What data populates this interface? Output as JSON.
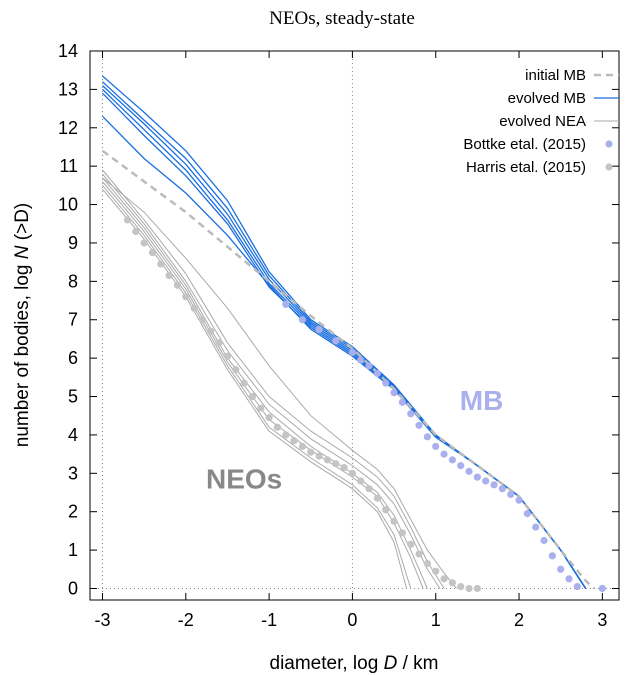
{
  "chart_data": {
    "type": "line",
    "title": "NEOs, steady-state",
    "xlabel_prefix": "diameter, log ",
    "xlabel_var": "D",
    "xlabel_suffix": " / km",
    "ylabel_prefix": "number of bodies, log ",
    "ylabel_var": "N",
    "ylabel_suffix": " (>D)",
    "xlim": [
      -3.15,
      3.2
    ],
    "ylim": [
      -0.3,
      14
    ],
    "xticks": [
      -3,
      -2,
      -1,
      0,
      1,
      2,
      3
    ],
    "yticks": [
      0,
      1,
      2,
      3,
      4,
      5,
      6,
      7,
      8,
      9,
      10,
      11,
      12,
      13,
      14
    ],
    "grid": false,
    "legend_position": "top-right",
    "annotations": [
      {
        "text": "MB",
        "x": 1.55,
        "y": 4.65,
        "color": "#aab0ee"
      },
      {
        "text": "NEOs",
        "x": -1.3,
        "y": 2.6,
        "color": "#888888"
      }
    ],
    "colors": {
      "initial_mb": "#bbbbbb",
      "evolved_mb": "#1a6fe0",
      "evolved_nea": "#aaaaaa",
      "bottke": "#aab0ee",
      "harris": "#c4c4c4"
    },
    "series": [
      {
        "name": "initial MB",
        "style": "dashed",
        "color": "#bbbbbb",
        "x": [
          -3,
          -2.5,
          -2,
          -1.5,
          -1,
          -0.5,
          0,
          0.5,
          1,
          1.5,
          2,
          2.5,
          2.8,
          2.9
        ],
        "y": [
          11.4,
          10.6,
          9.8,
          8.9,
          8.0,
          7.1,
          6.25,
          5.2,
          4.0,
          3.2,
          2.4,
          1.0,
          0.2,
          0.0
        ]
      },
      {
        "name": "evolved MB",
        "style": "solid",
        "color": "#1a6fe0",
        "lines": [
          {
            "x": [
              -3,
              -2.5,
              -2,
              -1.5,
              -1,
              -0.5,
              0,
              0.5,
              1,
              1.5,
              2,
              2.5,
              2.8
            ],
            "y": [
              13.35,
              12.4,
              11.4,
              10.1,
              8.25,
              7.0,
              6.3,
              5.3,
              4.0,
              3.2,
              2.4,
              1.0,
              0.0
            ]
          },
          {
            "x": [
              -3,
              -2.5,
              -2,
              -1.5,
              -1,
              -0.5,
              0,
              0.5,
              1,
              1.5,
              2,
              2.5,
              2.8
            ],
            "y": [
              13.2,
              12.2,
              11.2,
              9.9,
              8.15,
              6.95,
              6.25,
              5.28,
              3.98,
              3.2,
              2.4,
              1.0,
              0.0
            ]
          },
          {
            "x": [
              -3,
              -2.5,
              -2,
              -1.5,
              -1,
              -0.5,
              0,
              0.5,
              1,
              1.5,
              2,
              2.5,
              2.8
            ],
            "y": [
              13.1,
              12.1,
              11.05,
              9.75,
              8.05,
              6.9,
              6.2,
              5.25,
              3.97,
              3.2,
              2.4,
              1.0,
              0.0
            ]
          },
          {
            "x": [
              -3,
              -2.5,
              -2,
              -1.5,
              -1,
              -0.5,
              0,
              0.5,
              1,
              1.5,
              2,
              2.5,
              2.8
            ],
            "y": [
              13.0,
              11.95,
              10.9,
              9.6,
              7.95,
              6.85,
              6.15,
              5.22,
              3.96,
              3.2,
              2.4,
              1.0,
              0.0
            ]
          },
          {
            "x": [
              -3,
              -2.5,
              -2,
              -1.5,
              -1,
              -0.5,
              0,
              0.5,
              1,
              1.5,
              2,
              2.5,
              2.8
            ],
            "y": [
              12.9,
              11.8,
              10.75,
              9.5,
              7.85,
              6.8,
              6.1,
              5.2,
              3.95,
              3.2,
              2.4,
              1.0,
              0.0
            ]
          },
          {
            "x": [
              -3,
              -2.5,
              -2,
              -1.5,
              -1,
              -0.5,
              0,
              0.5,
              1,
              1.5,
              2,
              2.5,
              2.8
            ],
            "y": [
              12.3,
              11.2,
              10.3,
              9.2,
              7.9,
              6.75,
              6.05,
              5.18,
              3.94,
              3.2,
              2.4,
              1.0,
              0.0
            ]
          }
        ]
      },
      {
        "name": "evolved NEA",
        "style": "solid",
        "color": "#aaaaaa",
        "lines": [
          {
            "x": [
              -3,
              -2.5,
              -2,
              -1.5,
              -1,
              -0.5,
              0,
              0.3,
              0.5,
              0.7,
              0.9,
              1.1
            ],
            "y": [
              10.9,
              9.6,
              8.2,
              6.4,
              5.0,
              4.1,
              3.4,
              2.9,
              2.4,
              1.6,
              0.7,
              0.0
            ]
          },
          {
            "x": [
              -3,
              -2.5,
              -2,
              -1.5,
              -1,
              -0.5,
              0,
              0.3,
              0.5,
              0.7,
              0.9,
              1.05
            ],
            "y": [
              10.8,
              9.5,
              8.0,
              6.2,
              4.8,
              3.9,
              3.2,
              2.7,
              2.2,
              1.4,
              0.5,
              0.0
            ]
          },
          {
            "x": [
              -3,
              -2.5,
              -2,
              -1.5,
              -1,
              -0.5,
              0,
              0.3,
              0.5,
              0.7,
              0.9
            ],
            "y": [
              10.7,
              9.4,
              7.9,
              6.0,
              4.6,
              3.7,
              3.0,
              2.5,
              1.9,
              1.0,
              0.0
            ]
          },
          {
            "x": [
              -3,
              -2.5,
              -2,
              -1.5,
              -1,
              -0.5,
              0,
              0.3,
              0.5,
              0.7,
              0.85
            ],
            "y": [
              10.6,
              9.3,
              7.8,
              5.9,
              4.4,
              3.6,
              2.9,
              2.4,
              1.7,
              0.8,
              0.0
            ]
          },
          {
            "x": [
              -3,
              -2.5,
              -2,
              -1.5,
              -1,
              -0.5,
              0,
              0.3,
              0.5,
              0.7
            ],
            "y": [
              10.5,
              9.2,
              7.7,
              5.8,
              4.2,
              3.4,
              2.7,
              2.1,
              1.4,
              0.0
            ]
          },
          {
            "x": [
              -3,
              -2.5,
              -2,
              -1.5,
              -1,
              -0.5,
              0,
              0.3,
              0.5,
              0.65
            ],
            "y": [
              10.4,
              9.1,
              7.6,
              5.7,
              4.1,
              3.3,
              2.6,
              2.0,
              1.2,
              0.0
            ]
          },
          {
            "x": [
              -3,
              -2.5,
              -2,
              -1.5,
              -1,
              -0.5,
              0,
              0.3,
              0.5,
              0.7,
              0.9,
              1.1,
              1.25
            ],
            "y": [
              10.7,
              9.8,
              8.6,
              7.3,
              5.8,
              4.5,
              3.6,
              3.1,
              2.6,
              1.8,
              1.0,
              0.4,
              0.0
            ]
          }
        ]
      },
      {
        "name": "Bottke etal. (2015)",
        "style": "points",
        "color": "#aab0ee",
        "x": [
          -0.8,
          -0.6,
          -0.4,
          -0.2,
          0.0,
          0.1,
          0.2,
          0.3,
          0.4,
          0.5,
          0.6,
          0.7,
          0.8,
          0.9,
          1.0,
          1.1,
          1.2,
          1.3,
          1.4,
          1.5,
          1.6,
          1.7,
          1.8,
          1.9,
          2.0,
          2.1,
          2.2,
          2.3,
          2.4,
          2.5,
          2.6,
          2.7,
          3.0
        ],
        "y": [
          7.4,
          7.0,
          6.75,
          6.45,
          6.15,
          5.95,
          5.8,
          5.6,
          5.35,
          5.1,
          4.85,
          4.55,
          4.25,
          3.95,
          3.7,
          3.5,
          3.35,
          3.2,
          3.05,
          2.9,
          2.8,
          2.7,
          2.6,
          2.45,
          2.3,
          1.95,
          1.6,
          1.25,
          0.85,
          0.5,
          0.25,
          0.05,
          0.0
        ]
      },
      {
        "name": "Harris etal. (2015)",
        "style": "points",
        "color": "#c4c4c4",
        "x": [
          -2.7,
          -2.6,
          -2.5,
          -2.4,
          -2.3,
          -2.2,
          -2.1,
          -2.0,
          -1.9,
          -1.8,
          -1.7,
          -1.6,
          -1.5,
          -1.4,
          -1.3,
          -1.2,
          -1.1,
          -1.0,
          -0.9,
          -0.8,
          -0.7,
          -0.6,
          -0.5,
          -0.4,
          -0.3,
          -0.2,
          -0.1,
          0.0,
          0.1,
          0.2,
          0.3,
          0.4,
          0.5,
          0.6,
          0.7,
          0.8,
          0.9,
          1.0,
          1.1,
          1.2,
          1.3,
          1.4,
          1.5
        ],
        "y": [
          9.6,
          9.3,
          9.0,
          8.75,
          8.45,
          8.15,
          7.9,
          7.6,
          7.3,
          7.0,
          6.7,
          6.4,
          6.05,
          5.7,
          5.35,
          5.0,
          4.7,
          4.45,
          4.2,
          4.0,
          3.85,
          3.7,
          3.55,
          3.45,
          3.35,
          3.25,
          3.15,
          3.0,
          2.8,
          2.6,
          2.35,
          2.05,
          1.75,
          1.45,
          1.15,
          0.9,
          0.65,
          0.45,
          0.25,
          0.15,
          0.05,
          0.0,
          0.0
        ]
      }
    ]
  }
}
